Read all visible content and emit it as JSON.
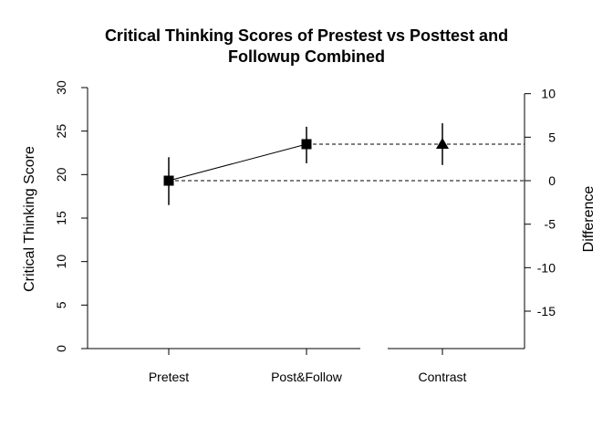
{
  "chart_data": {
    "type": "scatter",
    "title_line1": "Critical Thinking Scores of Prestest vs Posttest and",
    "title_line2": "Followup Combined",
    "ylabel": "Critical Thinking Score",
    "y2label": "Difference",
    "categories": [
      "Pretest",
      "Post&Follow",
      "Contrast"
    ],
    "ylim": [
      0,
      30
    ],
    "yticks": [
      "0",
      "5",
      "10",
      "15",
      "20",
      "25",
      "30"
    ],
    "y2lim": [
      -19.3,
      10.7
    ],
    "y2ticks": [
      "-15",
      "-10",
      "-5",
      "0",
      "5",
      "10"
    ],
    "points": [
      {
        "category": "Pretest",
        "value": 19.3,
        "lower": 16.5,
        "upper": 22.0,
        "marker": "square"
      },
      {
        "category": "Post&Follow",
        "value": 23.5,
        "lower": 21.3,
        "upper": 25.5,
        "marker": "square"
      }
    ],
    "contrast": {
      "category": "Contrast",
      "value": 4.2,
      "lower": 1.8,
      "upper": 6.6,
      "marker": "triangle"
    },
    "grid": false
  }
}
